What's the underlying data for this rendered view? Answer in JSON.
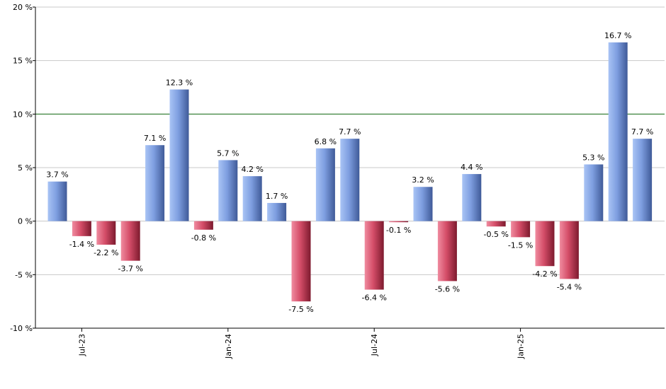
{
  "chart_data": {
    "type": "bar",
    "title": "",
    "xlabel": "",
    "ylabel": "",
    "ylim": [
      -10,
      20
    ],
    "y_ticks": [
      -10,
      -5,
      0,
      5,
      10,
      15,
      20
    ],
    "y_tick_labels": [
      "-10 %",
      "-5 %",
      "0 %",
      "5 %",
      "10 %",
      "15 %",
      "20 %"
    ],
    "grid": true,
    "reference_line": {
      "value": 10,
      "color": "#2e7d2e"
    },
    "x_tick_labels": [
      {
        "label": "Jul-23",
        "index": 1
      },
      {
        "label": "Jan-24",
        "index": 7
      },
      {
        "label": "Jul-24",
        "index": 13
      },
      {
        "label": "Jan-25",
        "index": 19
      }
    ],
    "values": [
      3.7,
      -1.4,
      -2.2,
      -3.7,
      7.1,
      12.3,
      -0.8,
      5.7,
      4.2,
      1.7,
      -7.5,
      6.8,
      7.7,
      -6.4,
      -0.1,
      3.2,
      -5.6,
      4.4,
      -0.5,
      -1.5,
      -4.2,
      -5.4,
      5.3,
      16.7,
      7.7
    ],
    "labels": [
      "3.7 %",
      "-1.4 %",
      "-2.2 %",
      "-3.7 %",
      "7.1 %",
      "12.3 %",
      "-0.8 %",
      "5.7 %",
      "4.2 %",
      "1.7 %",
      "-7.5 %",
      "6.8 %",
      "7.7 %",
      "-6.4 %",
      "-0.1 %",
      "3.2 %",
      "-5.6 %",
      "4.4 %",
      "-0.5 %",
      "-1.5 %",
      "-4.2 %",
      "-5.4 %",
      "5.3 %",
      "16.7 %",
      "7.7 %"
    ],
    "colors": {
      "positive": "#6f93d6",
      "negative": "#c8405c"
    }
  }
}
